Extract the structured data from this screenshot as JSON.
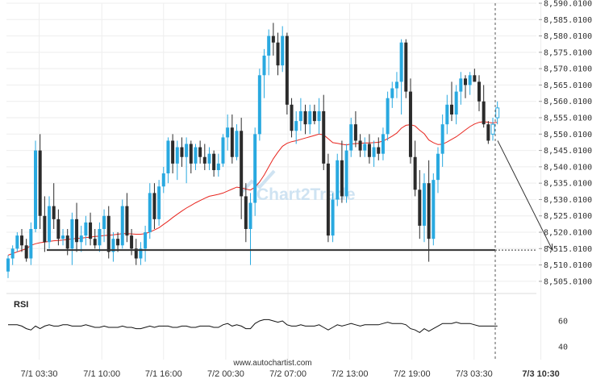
{
  "chart_data": {
    "type": "candlestick",
    "y_axis": {
      "range": [
        8503.01,
        8590.01
      ],
      "ticks": [
        "8,590.0100",
        "8,585.0100",
        "8,580.0100",
        "8,575.0100",
        "8,570.0100",
        "8,565.0100",
        "8,560.0100",
        "8,555.0100",
        "8,550.0100",
        "8,545.0100",
        "8,540.0100",
        "8,535.0100",
        "8,530.0100",
        "8,525.0100",
        "8,520.0100",
        "8,515.0100",
        "8,510.0100",
        "8,505.0100"
      ],
      "tick_values": [
        8590.01,
        8585.01,
        8580.01,
        8575.01,
        8570.01,
        8565.01,
        8560.01,
        8555.01,
        8550.01,
        8545.01,
        8540.01,
        8535.01,
        8530.01,
        8525.01,
        8520.01,
        8515.01,
        8510.01,
        8505.01
      ]
    },
    "x_axis": {
      "labels": [
        "7/1 03:30",
        "7/1 10:00",
        "7/1 16:00",
        "7/2 00:30",
        "7/2 07:00",
        "7/2 13:00",
        "7/2 19:00",
        "7/3 03:30",
        "7/3 10:30"
      ],
      "label_positions": [
        6.8,
        20.5,
        34.0,
        47.6,
        61.2,
        74.7,
        88.3,
        101.9,
        116.5
      ],
      "highlighted_label": "7/3 10:30"
    },
    "candles": [
      [
        8508,
        8513,
        8506,
        8512
      ],
      [
        8512,
        8516,
        8510,
        8515
      ],
      [
        8515,
        8520,
        8514,
        8519
      ],
      [
        8519,
        8521,
        8514,
        8516
      ],
      [
        8516,
        8518,
        8511,
        8512
      ],
      [
        8512,
        8523,
        8510,
        8521
      ],
      [
        8521,
        8548,
        8520,
        8545
      ],
      [
        8545,
        8550,
        8521,
        8525
      ],
      [
        8525,
        8531,
        8514,
        8517
      ],
      [
        8517,
        8531,
        8515,
        8528
      ],
      [
        8528,
        8535,
        8521,
        8524
      ],
      [
        8524,
        8527,
        8516,
        8518
      ],
      [
        8518,
        8521,
        8516,
        8519
      ],
      [
        8519,
        8521,
        8513,
        8515
      ],
      [
        8515,
        8526,
        8510,
        8524
      ],
      [
        8524,
        8529,
        8514,
        8517
      ],
      [
        8517,
        8522,
        8514,
        8519
      ],
      [
        8519,
        8525,
        8516,
        8523
      ],
      [
        8523,
        8526,
        8516,
        8518
      ],
      [
        8518,
        8521,
        8515,
        8516
      ],
      [
        8516,
        8523,
        8514,
        8521
      ],
      [
        8521,
        8527,
        8517,
        8525
      ],
      [
        8525,
        8528,
        8512,
        8514
      ],
      [
        8514,
        8520,
        8511,
        8518
      ],
      [
        8518,
        8520,
        8514,
        8516
      ],
      [
        8516,
        8530,
        8515,
        8528
      ],
      [
        8528,
        8532,
        8517,
        8519
      ],
      [
        8519,
        8521,
        8513,
        8515
      ],
      [
        8515,
        8518,
        8510,
        8512
      ],
      [
        8512,
        8517,
        8510,
        8515
      ],
      [
        8515,
        8522,
        8511,
        8520
      ],
      [
        8520,
        8535,
        8518,
        8532
      ],
      [
        8532,
        8535,
        8521,
        8524
      ],
      [
        8524,
        8536,
        8522,
        8534
      ],
      [
        8534,
        8540,
        8532,
        8538
      ],
      [
        8538,
        8549,
        8535,
        8548
      ],
      [
        8548,
        8550,
        8538,
        8541
      ],
      [
        8541,
        8548,
        8536,
        8546
      ],
      [
        8546,
        8549,
        8540,
        8543
      ],
      [
        8543,
        8549,
        8535,
        8547
      ],
      [
        8547,
        8548,
        8538,
        8541
      ],
      [
        8541,
        8547,
        8539,
        8546
      ],
      [
        8546,
        8548,
        8541,
        8543
      ],
      [
        8543,
        8547,
        8539,
        8541
      ],
      [
        8541,
        8546,
        8539,
        8544
      ],
      [
        8544,
        8545,
        8537,
        8539
      ],
      [
        8539,
        8544,
        8537,
        8541
      ],
      [
        8541,
        8550,
        8540,
        8549
      ],
      [
        8549,
        8556,
        8545,
        8552
      ],
      [
        8552,
        8556,
        8541,
        8543
      ],
      [
        8543,
        8553,
        8542,
        8551
      ],
      [
        8551,
        8555,
        8524,
        8531
      ],
      [
        8531,
        8535,
        8517,
        8521
      ],
      [
        8521,
        8532,
        8510,
        8529
      ],
      [
        8529,
        8552,
        8525,
        8550
      ],
      [
        8550,
        8570,
        8548,
        8568
      ],
      [
        8568,
        8576,
        8561,
        8574
      ],
      [
        8574,
        8582,
        8568,
        8580
      ],
      [
        8580,
        8584,
        8574,
        8578
      ],
      [
        8578,
        8581,
        8568,
        8571
      ],
      [
        8571,
        8583,
        8569,
        8580
      ],
      [
        8580,
        8581,
        8556,
        8559
      ],
      [
        8559,
        8561,
        8549,
        8551
      ],
      [
        8551,
        8557,
        8547,
        8554
      ],
      [
        8554,
        8561,
        8551,
        8557
      ],
      [
        8557,
        8559,
        8550,
        8553
      ],
      [
        8553,
        8559,
        8550,
        8557
      ],
      [
        8557,
        8559,
        8553,
        8554
      ],
      [
        8554,
        8561,
        8550,
        8557
      ],
      [
        8557,
        8562,
        8539,
        8541
      ],
      [
        8541,
        8544,
        8517,
        8519
      ],
      [
        8519,
        8532,
        8517,
        8530
      ],
      [
        8530,
        8544,
        8528,
        8542
      ],
      [
        8542,
        8548,
        8529,
        8531
      ],
      [
        8531,
        8547,
        8529,
        8545
      ],
      [
        8545,
        8555,
        8543,
        8553
      ],
      [
        8553,
        8557,
        8546,
        8548
      ],
      [
        8548,
        8550,
        8543,
        8545
      ],
      [
        8545,
        8549,
        8543,
        8547
      ],
      [
        8547,
        8550,
        8541,
        8543
      ],
      [
        8543,
        8548,
        8540,
        8546
      ],
      [
        8546,
        8549,
        8542,
        8544
      ],
      [
        8544,
        8552,
        8542,
        8550
      ],
      [
        8550,
        8563,
        8548,
        8561
      ],
      [
        8561,
        8566,
        8558,
        8564
      ],
      [
        8564,
        8569,
        8561,
        8566
      ],
      [
        8566,
        8579,
        8556,
        8578
      ],
      [
        8578,
        8579,
        8561,
        8563
      ],
      [
        8563,
        8567,
        8541,
        8543
      ],
      [
        8543,
        8548,
        8531,
        8533
      ],
      [
        8533,
        8539,
        8518,
        8522
      ],
      [
        8522,
        8538,
        8517,
        8535
      ],
      [
        8535,
        8542,
        8511,
        8518
      ],
      [
        8518,
        8538,
        8516,
        8536
      ],
      [
        8536,
        8546,
        8532,
        8544
      ],
      [
        8544,
        8556,
        8540,
        8553
      ],
      [
        8553,
        8562,
        8550,
        8559
      ],
      [
        8559,
        8566,
        8554,
        8556
      ],
      [
        8556,
        8565,
        8553,
        8563
      ],
      [
        8563,
        8569,
        8559,
        8567
      ],
      [
        8567,
        8568,
        8561,
        8565
      ],
      [
        8565,
        8569,
        8562,
        8568
      ],
      [
        8568,
        8570,
        8566,
        8566
      ],
      [
        8566,
        8568,
        8557,
        8560
      ],
      [
        8560,
        8565,
        8552,
        8553
      ],
      [
        8553,
        8554,
        8547,
        8548
      ],
      [
        8550,
        8555,
        8548,
        8553
      ],
      [
        8555,
        8560,
        8553,
        8558
      ]
    ],
    "moving_average": [
      8513,
      8513.5,
      8514,
      8514.5,
      8515,
      8516,
      8516.5,
      8516.8,
      8517,
      8517.2,
      8517.4,
      8517.5,
      8517.6,
      8517.8,
      8518,
      8518.1,
      8518.2,
      8518.4,
      8518.5,
      8518.7,
      8518.8,
      8519,
      8519.1,
      8519.2,
      8519.4,
      8519.6,
      8519.6,
      8519.5,
      8519.4,
      8519.4,
      8519.6,
      8520.1,
      8520.7,
      8521.4,
      8522.4,
      8523.4,
      8524.5,
      8525.5,
      8526.5,
      8527.4,
      8528.2,
      8529,
      8529.7,
      8530.4,
      8531,
      8531.3,
      8531.6,
      8532,
      8532.6,
      8533.2,
      8533.8,
      8533.6,
      8533.2,
      8532.9,
      8533.8,
      8535.4,
      8537.5,
      8540,
      8542.5,
      8544.5,
      8546.3,
      8547.2,
      8547.7,
      8548,
      8548.4,
      8548.8,
      8549.2,
      8549.6,
      8550,
      8549.8,
      8548.6,
      8547.4,
      8547.2,
      8546.9,
      8546.7,
      8547,
      8547.1,
      8547.2,
      8547.3,
      8547.3,
      8547.4,
      8547.5,
      8547.9,
      8548.6,
      8549.4,
      8550.3,
      8551.8,
      8552.7,
      8552.9,
      8552.5,
      8551.2,
      8550.1,
      8548.2,
      8547.4,
      8546.8,
      8546.9,
      8547.6,
      8548.4,
      8549.2,
      8550.2,
      8551.3,
      8552.3,
      8553.1,
      8553.6,
      8553.8,
      8553.6,
      8553.4,
      8553.6
    ],
    "rsi": {
      "label": "RSI",
      "ticks": [
        60,
        40
      ],
      "values": [
        57,
        57,
        57,
        56,
        54,
        53,
        56,
        54,
        56,
        57,
        56,
        56,
        57,
        57,
        56,
        56,
        56,
        57,
        56,
        55,
        55,
        56,
        55,
        55,
        55,
        56,
        55,
        55,
        54,
        54,
        55,
        56,
        55,
        56,
        56,
        56,
        55,
        55,
        56,
        56,
        55,
        55,
        56,
        56,
        56,
        55,
        55,
        57,
        58,
        56,
        57,
        56,
        54,
        54,
        58,
        60,
        61,
        61,
        60,
        59,
        60,
        57,
        56,
        56,
        57,
        56,
        56,
        56,
        57,
        55,
        53,
        55,
        57,
        56,
        57,
        58,
        57,
        56,
        57,
        57,
        57,
        57,
        58,
        59,
        58,
        58,
        58,
        57,
        54,
        53,
        51,
        54,
        52,
        54,
        56,
        58,
        58,
        58,
        59,
        58,
        58,
        58,
        57,
        56,
        56,
        56,
        56,
        56
      ]
    },
    "support_level": 8514.55,
    "projection": {
      "to_value": 8514.55
    },
    "colors": {
      "up": "#29a9e0",
      "down": "#2b2b2b",
      "moving_average": "#e8261f",
      "support": "#333333",
      "rsi_line": "#111111",
      "projection": "#333333",
      "grid": "#eeeeee"
    },
    "watermark": "Chart2Trade",
    "source_text": "www.autochartist.com"
  }
}
